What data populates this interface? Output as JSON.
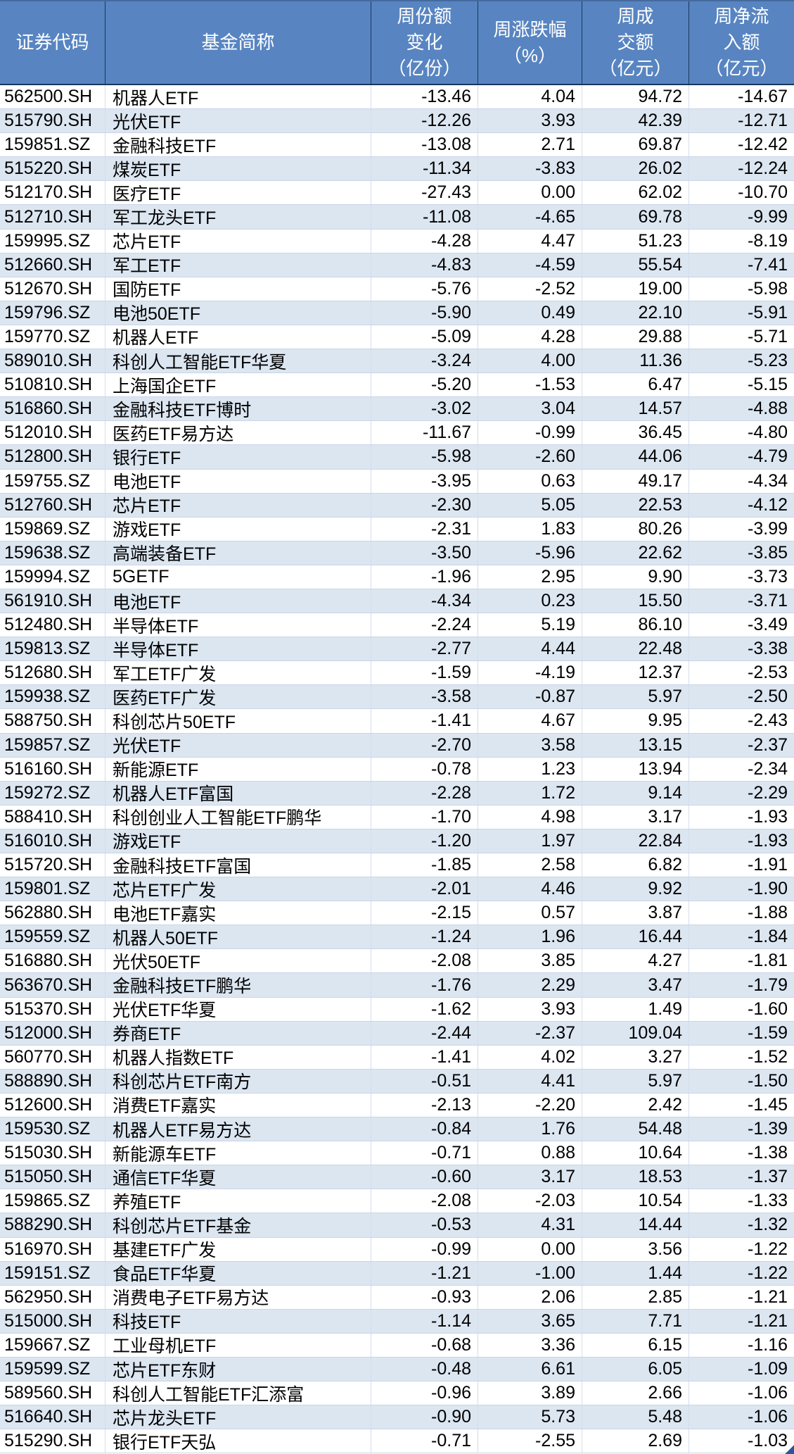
{
  "colors": {
    "header_bg": "#5885C1",
    "header_text": "#FFFFFF",
    "header_grid": "#17375E",
    "row_bg": "#FFFFFF",
    "row_alt_bg": "#DCE6F1",
    "grid_line": "#C9D6E6",
    "text": "#000000",
    "fill_handle": "#2E5597"
  },
  "chart_data": {
    "type": "table",
    "columns": [
      {
        "id": "code",
        "label": "证券代码",
        "align": "left"
      },
      {
        "id": "name",
        "label": "基金简称",
        "align": "left"
      },
      {
        "id": "share_change",
        "label": "周份额\n变化\n（亿份）",
        "align": "right"
      },
      {
        "id": "pct_change",
        "label": "周涨跌幅\n（%）",
        "align": "right"
      },
      {
        "id": "turnover",
        "label": "周成\n交额\n（亿元）",
        "align": "right"
      },
      {
        "id": "net_inflow",
        "label": "周净流\n入额\n（亿元）",
        "align": "right"
      }
    ],
    "rows": [
      [
        "562500.SH",
        "机器人ETF",
        "-13.46",
        "4.04",
        "94.72",
        "-14.67"
      ],
      [
        "515790.SH",
        "光伏ETF",
        "-12.26",
        "3.93",
        "42.39",
        "-12.71"
      ],
      [
        "159851.SZ",
        "金融科技ETF",
        "-13.08",
        "2.71",
        "69.87",
        "-12.42"
      ],
      [
        "515220.SH",
        "煤炭ETF",
        "-11.34",
        "-3.83",
        "26.02",
        "-12.24"
      ],
      [
        "512170.SH",
        "医疗ETF",
        "-27.43",
        "0.00",
        "62.02",
        "-10.70"
      ],
      [
        "512710.SH",
        "军工龙头ETF",
        "-11.08",
        "-4.65",
        "69.78",
        "-9.99"
      ],
      [
        "159995.SZ",
        "芯片ETF",
        "-4.28",
        "4.47",
        "51.23",
        "-8.19"
      ],
      [
        "512660.SH",
        "军工ETF",
        "-4.83",
        "-4.59",
        "55.54",
        "-7.41"
      ],
      [
        "512670.SH",
        "国防ETF",
        "-5.76",
        "-2.52",
        "19.00",
        "-5.98"
      ],
      [
        "159796.SZ",
        "电池50ETF",
        "-5.90",
        "0.49",
        "22.10",
        "-5.91"
      ],
      [
        "159770.SZ",
        "机器人ETF",
        "-5.09",
        "4.28",
        "29.88",
        "-5.71"
      ],
      [
        "589010.SH",
        "科创人工智能ETF华夏",
        "-3.24",
        "4.00",
        "11.36",
        "-5.23"
      ],
      [
        "510810.SH",
        "上海国企ETF",
        "-5.20",
        "-1.53",
        "6.47",
        "-5.15"
      ],
      [
        "516860.SH",
        "金融科技ETF博时",
        "-3.02",
        "3.04",
        "14.57",
        "-4.88"
      ],
      [
        "512010.SH",
        "医药ETF易方达",
        "-11.67",
        "-0.99",
        "36.45",
        "-4.80"
      ],
      [
        "512800.SH",
        "银行ETF",
        "-5.98",
        "-2.60",
        "44.06",
        "-4.79"
      ],
      [
        "159755.SZ",
        "电池ETF",
        "-3.95",
        "0.63",
        "49.17",
        "-4.34"
      ],
      [
        "512760.SH",
        "芯片ETF",
        "-2.30",
        "5.05",
        "22.53",
        "-4.12"
      ],
      [
        "159869.SZ",
        "游戏ETF",
        "-2.31",
        "1.83",
        "80.26",
        "-3.99"
      ],
      [
        "159638.SZ",
        "高端装备ETF",
        "-3.50",
        "-5.96",
        "22.62",
        "-3.85"
      ],
      [
        "159994.SZ",
        "5GETF",
        "-1.96",
        "2.95",
        "9.90",
        "-3.73"
      ],
      [
        "561910.SH",
        "电池ETF",
        "-4.34",
        "0.23",
        "15.50",
        "-3.71"
      ],
      [
        "512480.SH",
        "半导体ETF",
        "-2.24",
        "5.19",
        "86.10",
        "-3.49"
      ],
      [
        "159813.SZ",
        "半导体ETF",
        "-2.77",
        "4.44",
        "22.48",
        "-3.38"
      ],
      [
        "512680.SH",
        "军工ETF广发",
        "-1.59",
        "-4.19",
        "12.37",
        "-2.53"
      ],
      [
        "159938.SZ",
        "医药ETF广发",
        "-3.58",
        "-0.87",
        "5.97",
        "-2.50"
      ],
      [
        "588750.SH",
        "科创芯片50ETF",
        "-1.41",
        "4.67",
        "9.95",
        "-2.43"
      ],
      [
        "159857.SZ",
        "光伏ETF",
        "-2.70",
        "3.58",
        "13.15",
        "-2.37"
      ],
      [
        "516160.SH",
        "新能源ETF",
        "-0.78",
        "1.23",
        "13.94",
        "-2.34"
      ],
      [
        "159272.SZ",
        "机器人ETF富国",
        "-2.28",
        "1.72",
        "9.14",
        "-2.29"
      ],
      [
        "588410.SH",
        "科创创业人工智能ETF鹏华",
        "-1.70",
        "4.98",
        "3.17",
        "-1.93"
      ],
      [
        "516010.SH",
        "游戏ETF",
        "-1.20",
        "1.97",
        "22.84",
        "-1.93"
      ],
      [
        "515720.SH",
        "金融科技ETF富国",
        "-1.85",
        "2.58",
        "6.82",
        "-1.91"
      ],
      [
        "159801.SZ",
        "芯片ETF广发",
        "-2.01",
        "4.46",
        "9.92",
        "-1.90"
      ],
      [
        "562880.SH",
        "电池ETF嘉实",
        "-2.15",
        "0.57",
        "3.87",
        "-1.88"
      ],
      [
        "159559.SZ",
        "机器人50ETF",
        "-1.24",
        "1.96",
        "16.44",
        "-1.84"
      ],
      [
        "516880.SH",
        "光伏50ETF",
        "-2.08",
        "3.85",
        "4.27",
        "-1.81"
      ],
      [
        "563670.SH",
        "金融科技ETF鹏华",
        "-1.76",
        "2.29",
        "3.47",
        "-1.79"
      ],
      [
        "515370.SH",
        "光伏ETF华夏",
        "-1.62",
        "3.93",
        "1.49",
        "-1.60"
      ],
      [
        "512000.SH",
        "券商ETF",
        "-2.44",
        "-2.37",
        "109.04",
        "-1.59"
      ],
      [
        "560770.SH",
        "机器人指数ETF",
        "-1.41",
        "4.02",
        "3.27",
        "-1.52"
      ],
      [
        "588890.SH",
        "科创芯片ETF南方",
        "-0.51",
        "4.41",
        "5.97",
        "-1.50"
      ],
      [
        "512600.SH",
        "消费ETF嘉实",
        "-2.13",
        "-2.20",
        "2.42",
        "-1.45"
      ],
      [
        "159530.SZ",
        "机器人ETF易方达",
        "-0.84",
        "1.76",
        "54.48",
        "-1.39"
      ],
      [
        "515030.SH",
        "新能源车ETF",
        "-0.71",
        "0.88",
        "10.64",
        "-1.38"
      ],
      [
        "515050.SH",
        "通信ETF华夏",
        "-0.60",
        "3.17",
        "18.53",
        "-1.37"
      ],
      [
        "159865.SZ",
        "养殖ETF",
        "-2.08",
        "-2.03",
        "10.54",
        "-1.33"
      ],
      [
        "588290.SH",
        "科创芯片ETF基金",
        "-0.53",
        "4.31",
        "14.44",
        "-1.32"
      ],
      [
        "516970.SH",
        "基建ETF广发",
        "-0.99",
        "0.00",
        "3.56",
        "-1.22"
      ],
      [
        "159151.SZ",
        "食品ETF华夏",
        "-1.21",
        "-1.00",
        "1.44",
        "-1.22"
      ],
      [
        "562950.SH",
        "消费电子ETF易方达",
        "-0.93",
        "2.06",
        "2.85",
        "-1.21"
      ],
      [
        "515000.SH",
        "科技ETF",
        "-1.14",
        "3.65",
        "7.71",
        "-1.21"
      ],
      [
        "159667.SZ",
        "工业母机ETF",
        "-0.68",
        "3.36",
        "6.15",
        "-1.16"
      ],
      [
        "159599.SZ",
        "芯片ETF东财",
        "-0.48",
        "6.61",
        "6.05",
        "-1.09"
      ],
      [
        "589560.SH",
        "科创人工智能ETF汇添富",
        "-0.96",
        "3.89",
        "2.66",
        "-1.06"
      ],
      [
        "516640.SH",
        "芯片龙头ETF",
        "-0.90",
        "5.73",
        "5.48",
        "-1.06"
      ],
      [
        "515290.SH",
        "银行ETF天弘",
        "-0.71",
        "-2.55",
        "2.69",
        "-1.03"
      ]
    ]
  }
}
